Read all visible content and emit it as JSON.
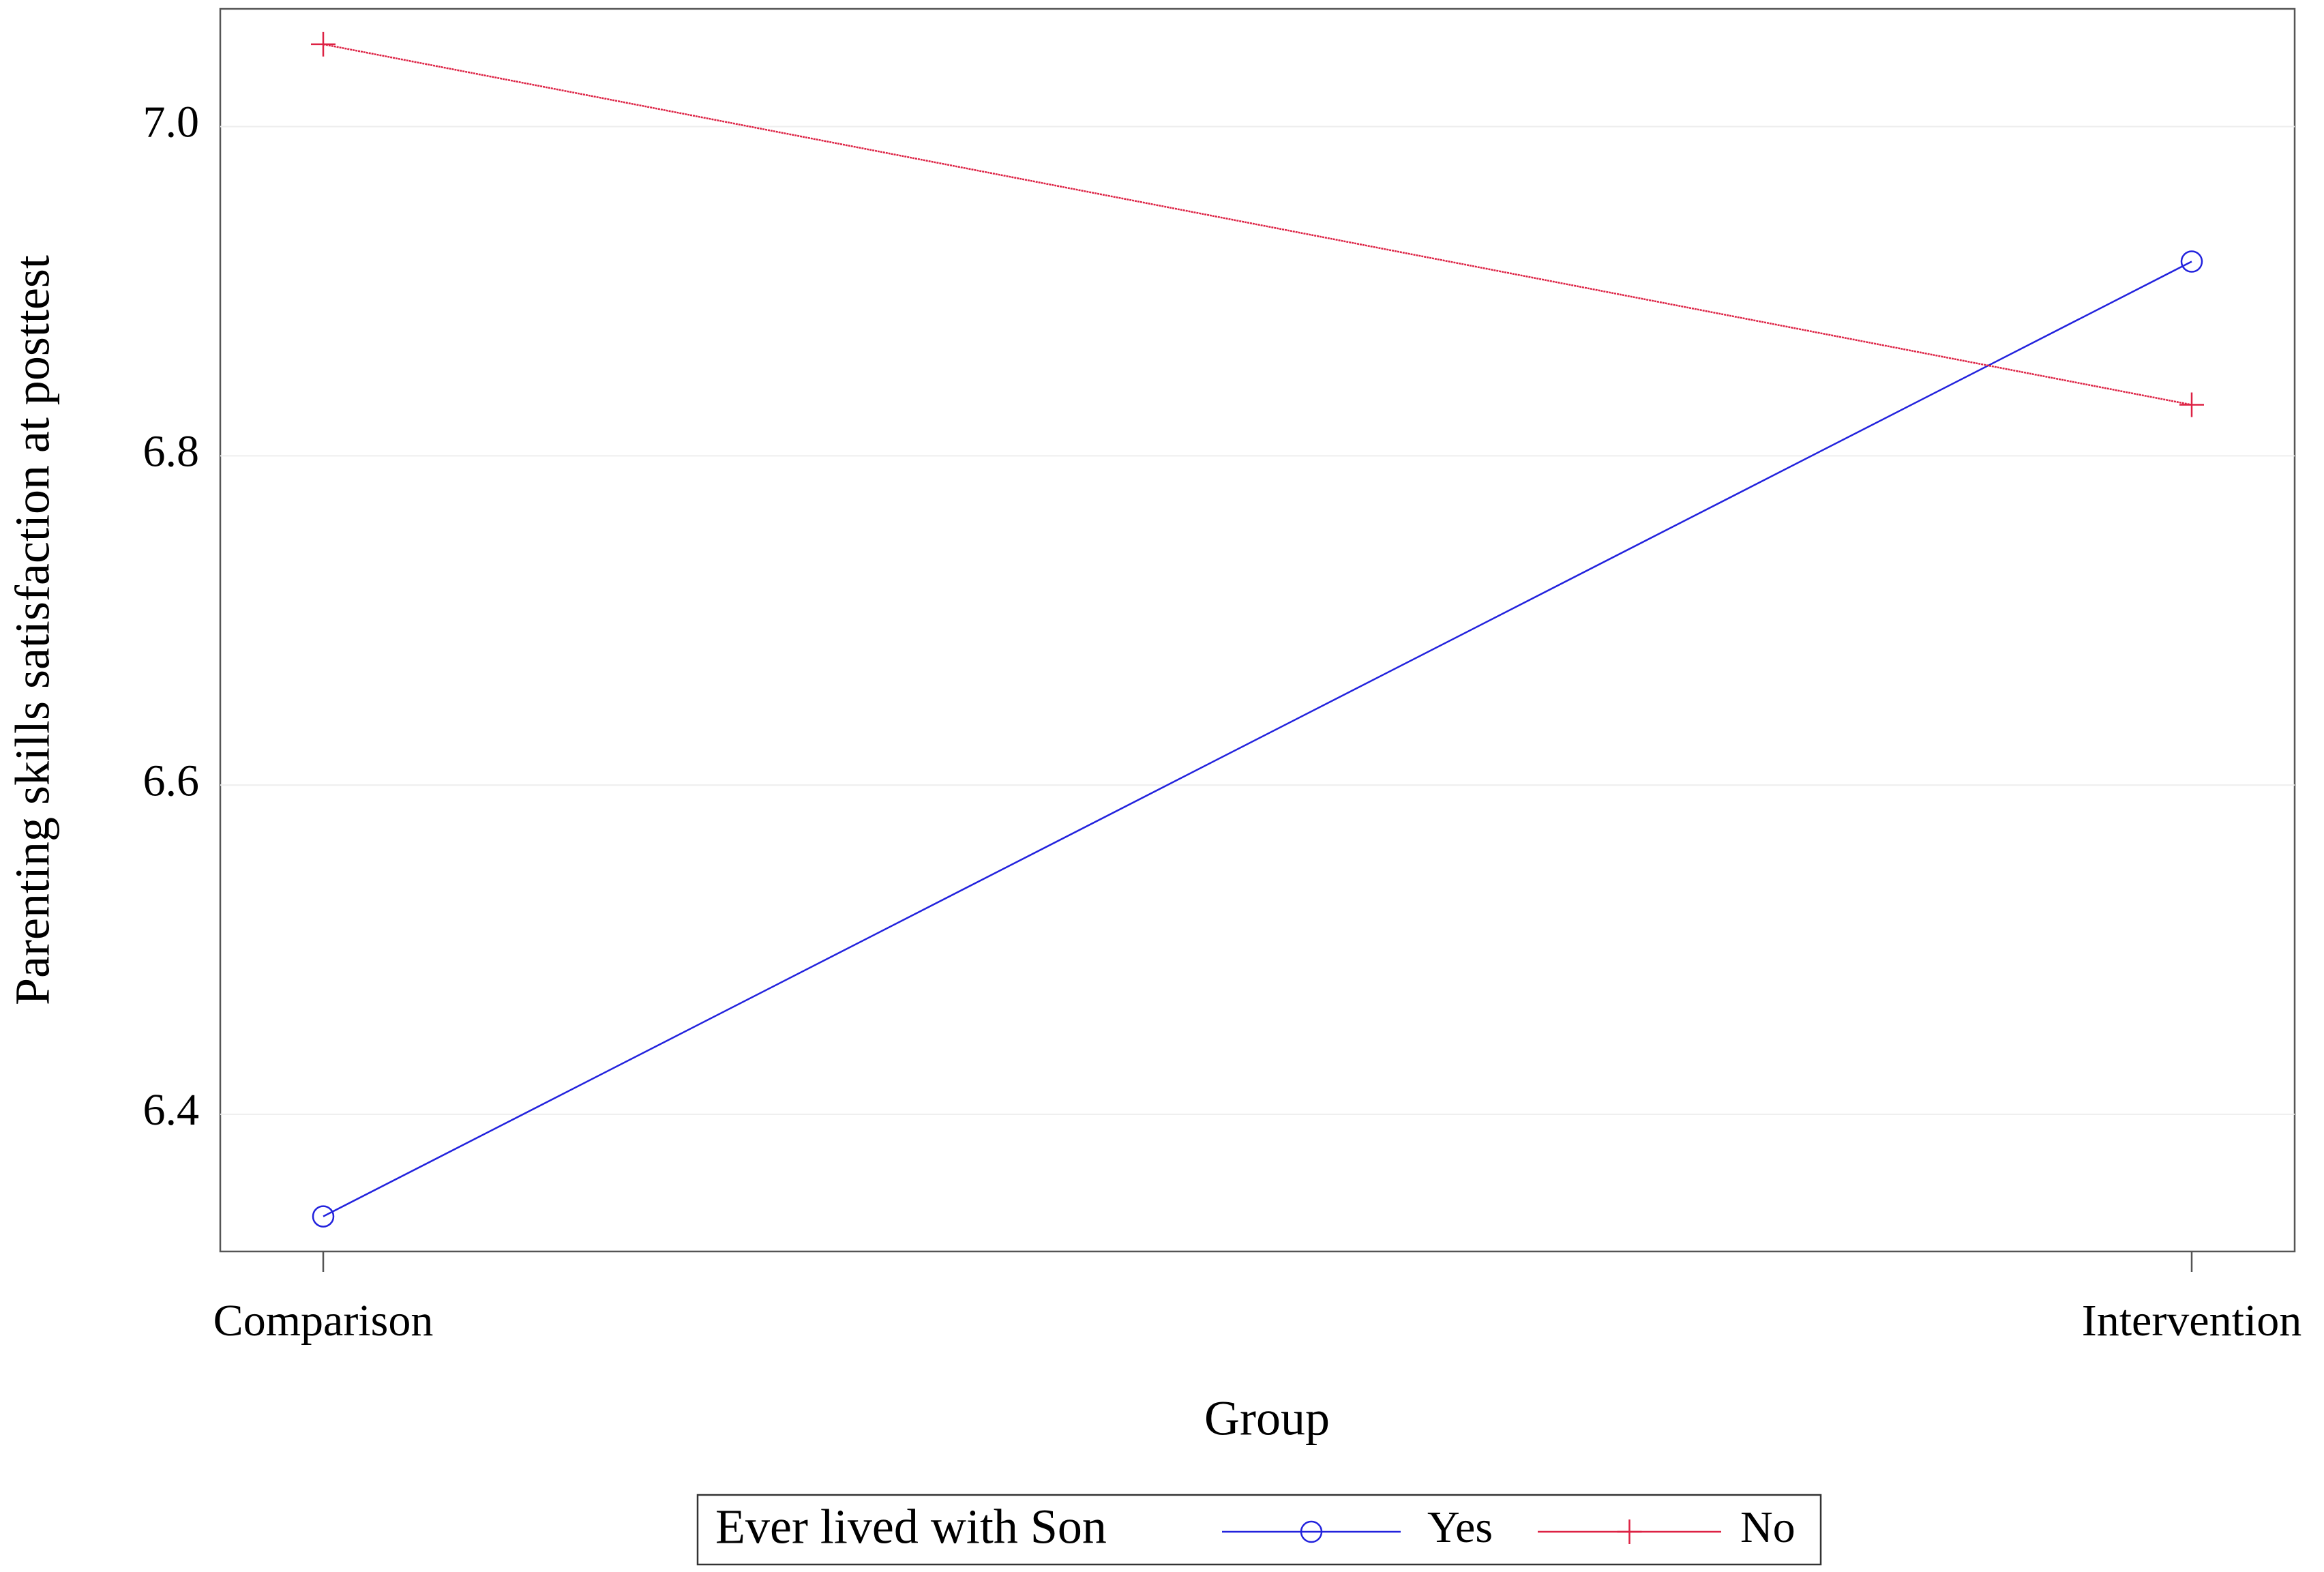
{
  "chart_data": {
    "type": "line",
    "x_label": "Group",
    "y_label": "Parenting skills satisfaction at posttest",
    "categories": [
      "Comparison",
      "Intervention"
    ],
    "series": [
      {
        "name": "Yes",
        "color": "#2222dd",
        "marker": "circle",
        "values": [
          6.338,
          6.918
        ]
      },
      {
        "name": "No",
        "color": "#dd2244",
        "marker": "plus",
        "values": [
          7.05,
          6.831
        ]
      }
    ],
    "ylim": [
      6.3167,
      7.0715
    ],
    "yticks": [
      6.4,
      6.6,
      6.8,
      {
        "value": 7,
        "label": "7.0"
      }
    ],
    "grid": true,
    "legend_title": "Ever lived with Son",
    "legend_position": "bottom"
  }
}
